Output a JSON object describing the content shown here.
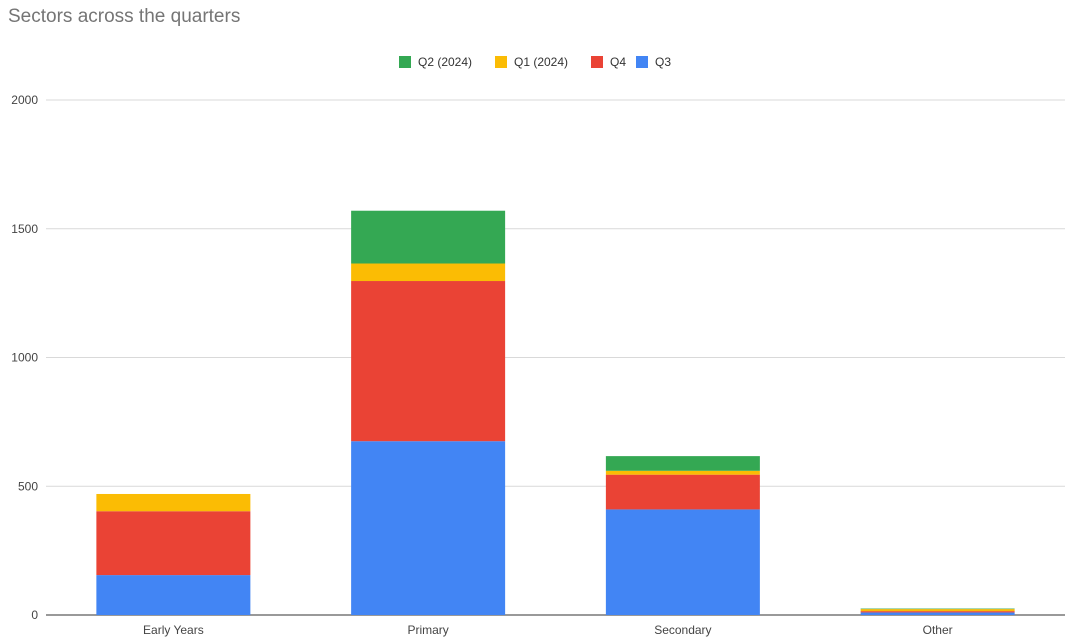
{
  "chart_data": {
    "type": "bar",
    "stacked": true,
    "title": "Sectors across the quarters",
    "xlabel": "",
    "ylabel": "",
    "categories": [
      "Early Years",
      "Primary",
      "Secondary",
      "Other"
    ],
    "ylim": [
      0,
      2000
    ],
    "yticks": [
      0,
      500,
      1000,
      1500,
      2000
    ],
    "grid": true,
    "legend_position": "top",
    "legend_order": [
      "Q2 (2024)",
      "Q1 (2024)",
      "Q4",
      "Q3"
    ],
    "series": [
      {
        "name": "Q3",
        "color": "#4285f4",
        "values": [
          155,
          675,
          410,
          10
        ]
      },
      {
        "name": "Q4",
        "color": "#ea4335",
        "values": [
          248,
          622,
          135,
          5
        ]
      },
      {
        "name": "Q1 (2024)",
        "color": "#fbbc04",
        "values": [
          67,
          68,
          15,
          8
        ]
      },
      {
        "name": "Q2 (2024)",
        "color": "#34a853",
        "values": [
          0,
          205,
          57,
          2
        ]
      }
    ]
  }
}
